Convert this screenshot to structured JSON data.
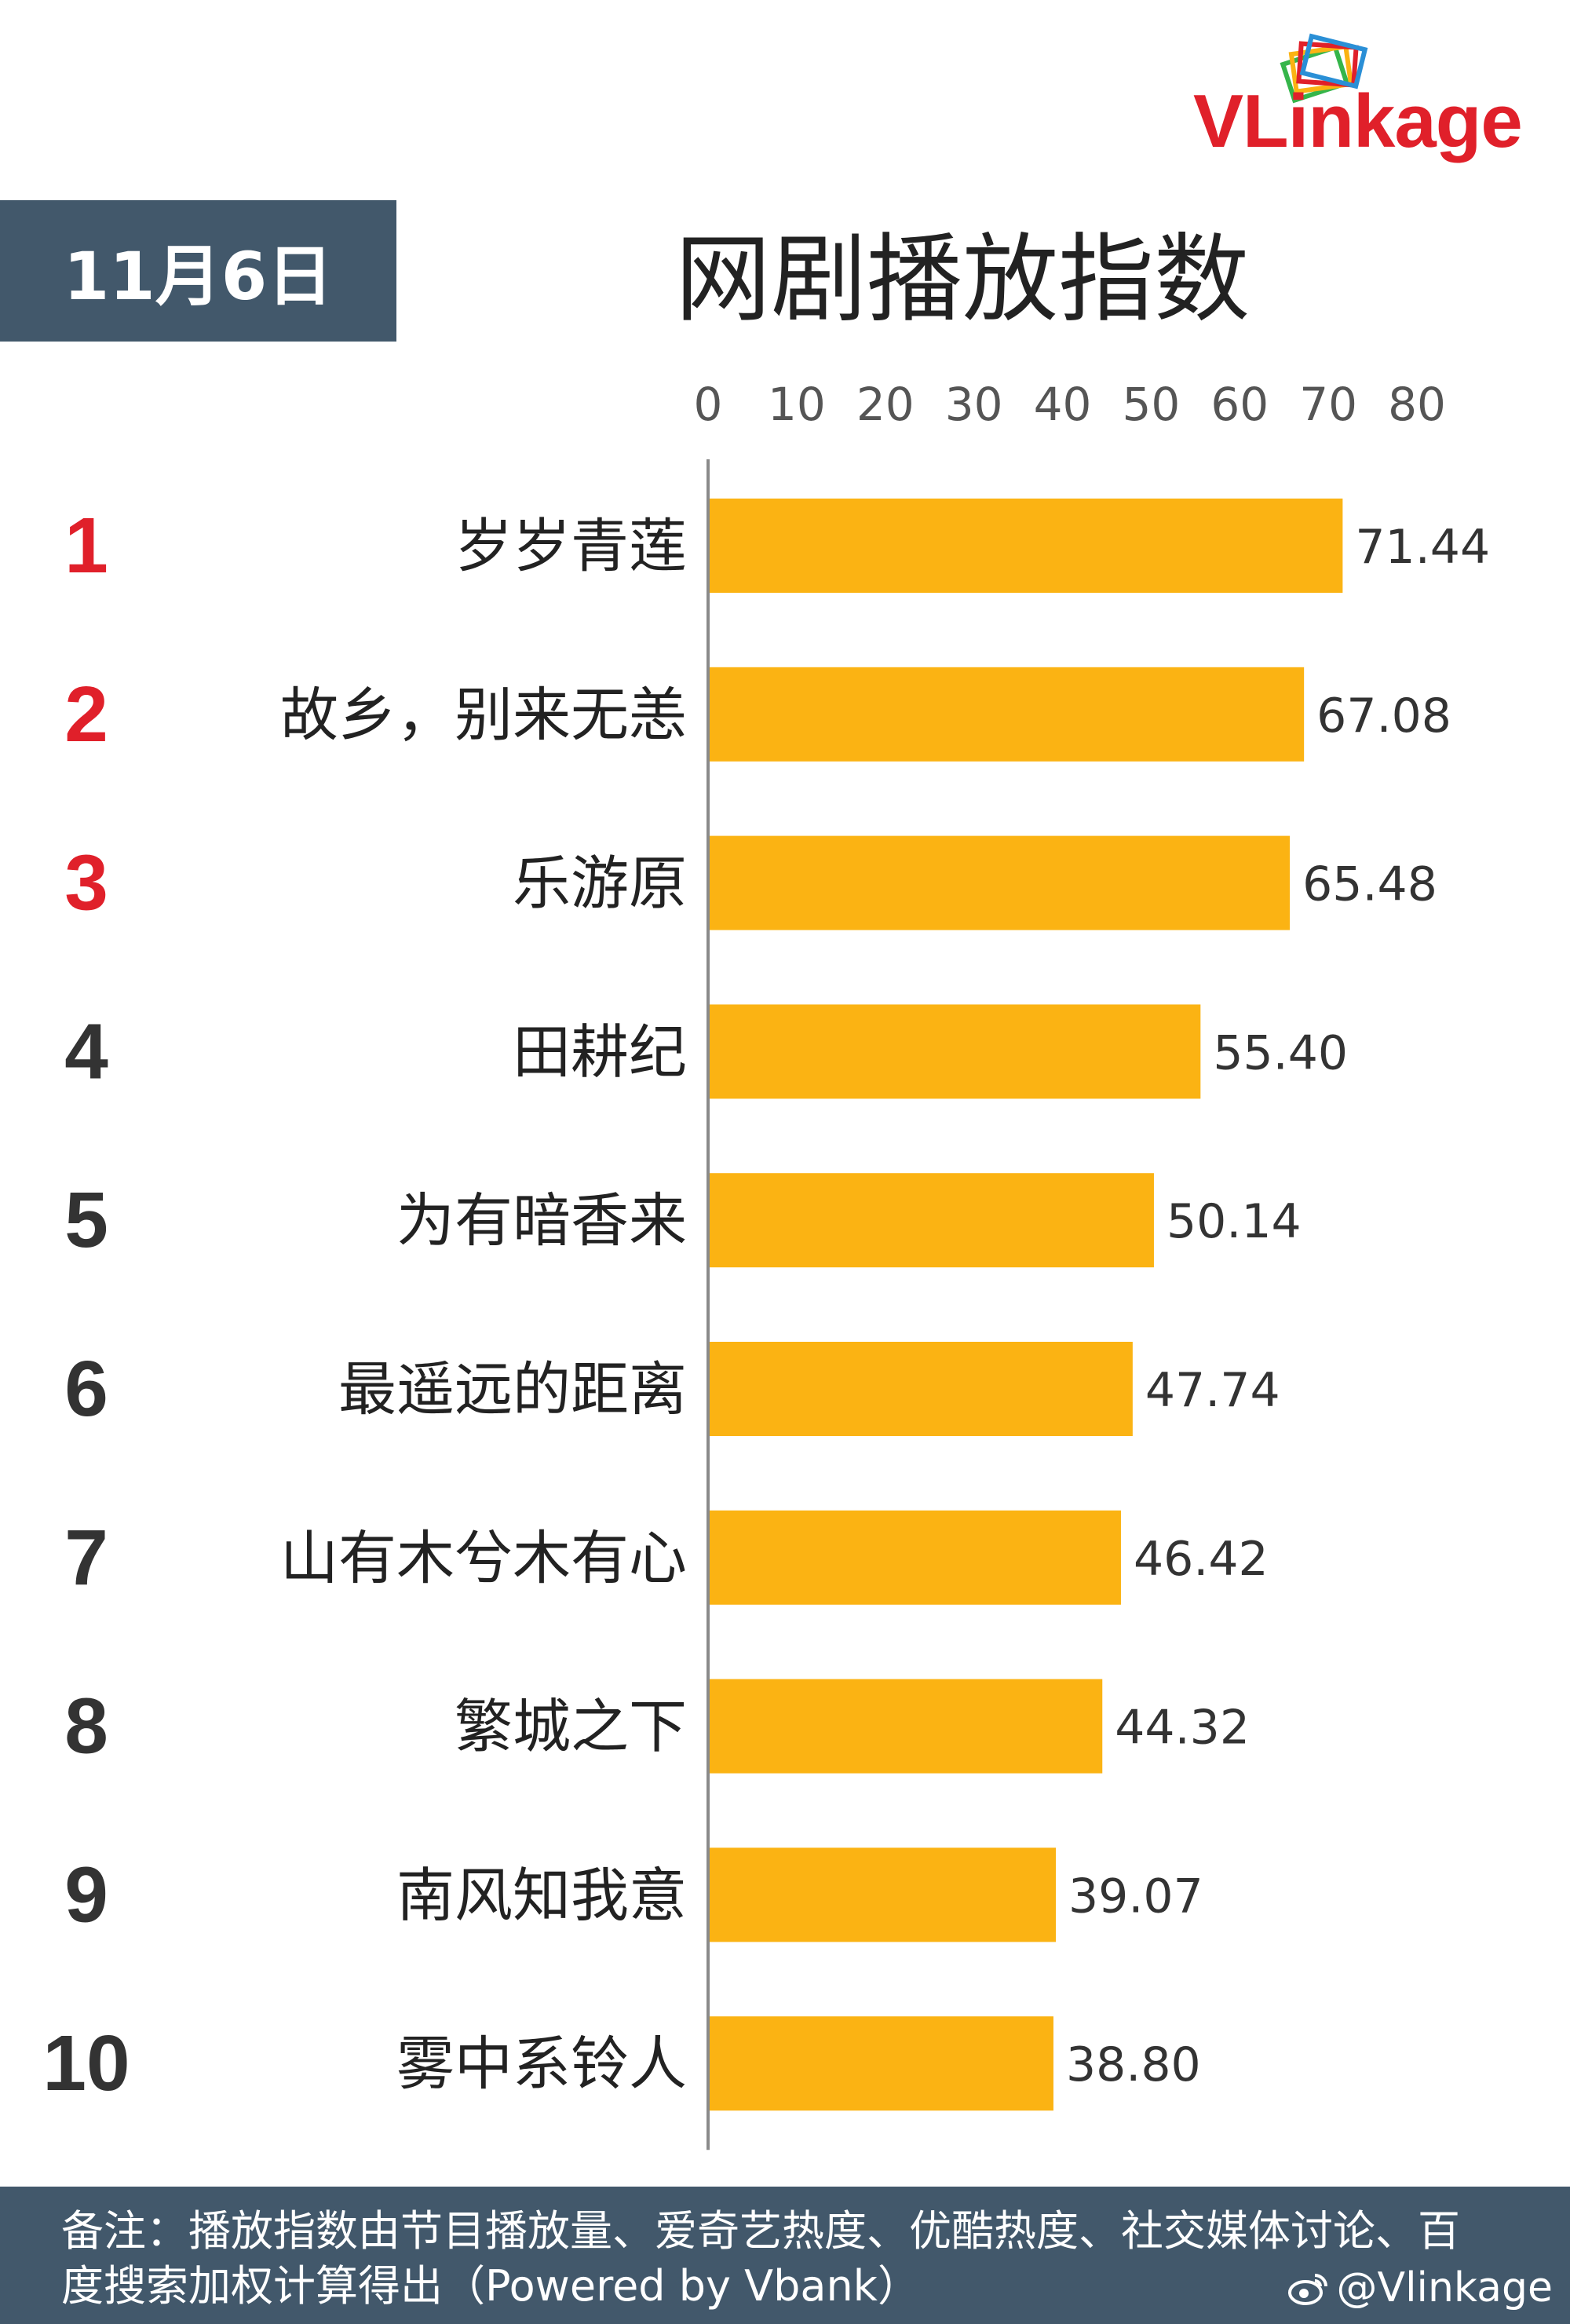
{
  "header": {
    "date": "11月6日",
    "title": "网剧播放指数",
    "brand": "VLinkage"
  },
  "colors": {
    "bar": "#fbb313",
    "badge": "#42586b",
    "rank_top": "#e0202a",
    "rank_other": "#333333",
    "axis": "#8a8a8a"
  },
  "chart_data": {
    "type": "bar",
    "orientation": "horizontal",
    "title": "网剧播放指数",
    "xlim": [
      0,
      80
    ],
    "x_ticks": [
      0,
      10,
      20,
      30,
      40,
      50,
      60,
      70,
      80
    ],
    "grid": false,
    "categories": [
      "岁岁青莲",
      "故乡，别来无恙",
      "乐游原",
      "田耕纪",
      "为有暗香来",
      "最遥远的距离",
      "山有木兮木有心",
      "繁城之下",
      "南风知我意",
      "雾中系铃人"
    ],
    "ranks": [
      "1",
      "2",
      "3",
      "4",
      "5",
      "6",
      "7",
      "8",
      "9",
      "10"
    ],
    "values": [
      71.44,
      67.08,
      65.48,
      55.4,
      50.14,
      47.74,
      46.42,
      44.32,
      39.07,
      38.8
    ],
    "value_labels": [
      "71.44",
      "67.08",
      "65.48",
      "55.40",
      "50.14",
      "47.74",
      "46.42",
      "44.32",
      "39.07",
      "38.80"
    ]
  },
  "footer": {
    "note": "备注：播放指数由节目播放量、爱奇艺热度、优酷热度、社交媒体讨论、百度搜索加权计算得出（Powered by Vbank）",
    "weibo": "@Vlinkage",
    "weibo_icon": "weibo-icon"
  }
}
